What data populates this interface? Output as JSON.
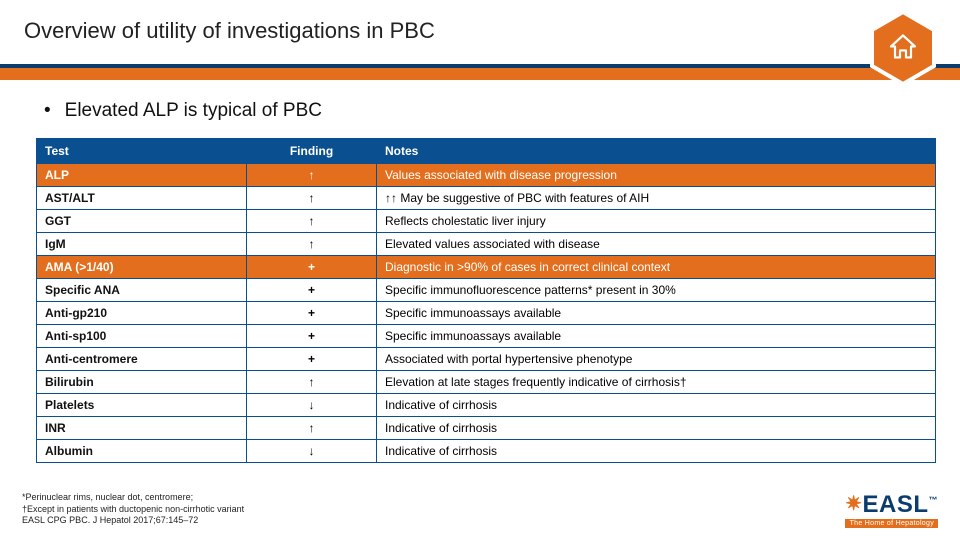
{
  "colors": {
    "accent_orange": "#e36f1e",
    "header_blue": "#0a4f8f",
    "dark_blue": "#0a3d6e",
    "white": "#ffffff",
    "text": "#111111"
  },
  "page": {
    "title": "Overview of utility of investigations in PBC",
    "bullet": "Elevated ALP is typical of PBC"
  },
  "table": {
    "headers": {
      "test": "Test",
      "finding": "Finding",
      "notes": "Notes"
    },
    "rows": [
      {
        "test": "ALP",
        "finding": "↑",
        "notes": "Values associated with disease progression",
        "highlight": true
      },
      {
        "test": "AST/ALT",
        "finding": "↑",
        "notes": "↑↑ May be suggestive of PBC with features of AIH",
        "highlight": false
      },
      {
        "test": "GGT",
        "finding": "↑",
        "notes": "Reflects cholestatic liver injury",
        "highlight": false
      },
      {
        "test": "IgM",
        "finding": "↑",
        "notes": "Elevated values associated with disease",
        "highlight": false
      },
      {
        "test": "AMA (>1/40)",
        "finding": "+",
        "notes": "Diagnostic in >90% of cases in correct clinical context",
        "highlight": true
      },
      {
        "test": "Specific ANA",
        "finding": "+",
        "notes": "Specific immunofluorescence patterns* present in 30%",
        "highlight": false
      },
      {
        "test": "Anti-gp210",
        "finding": "+",
        "notes": "Specific immunoassays available",
        "highlight": false
      },
      {
        "test": "Anti-sp100",
        "finding": "+",
        "notes": "Specific immunoassays available",
        "highlight": false
      },
      {
        "test": "Anti-centromere",
        "finding": "+",
        "notes": "Associated with portal hypertensive phenotype",
        "highlight": false
      },
      {
        "test": "Bilirubin",
        "finding": "↑",
        "notes": "Elevation at late stages frequently indicative of cirrhosis†",
        "highlight": false
      },
      {
        "test": "Platelets",
        "finding": "↓",
        "notes": "Indicative of cirrhosis",
        "highlight": false
      },
      {
        "test": "INR",
        "finding": "↑",
        "notes": "Indicative of cirrhosis",
        "highlight": false
      },
      {
        "test": "Albumin",
        "finding": "↓",
        "notes": "Indicative of cirrhosis",
        "highlight": false
      }
    ]
  },
  "footnote": {
    "l1": "*Perinuclear rims, nuclear dot, centromere;",
    "l2": "†Except in patients with ductopenic non-cirrhotic variant",
    "l3": "EASL CPG PBC. J Hepatol 2017;67:145–72"
  },
  "logo": {
    "brand": "EASL",
    "sub": "The Home of Hepatology"
  }
}
